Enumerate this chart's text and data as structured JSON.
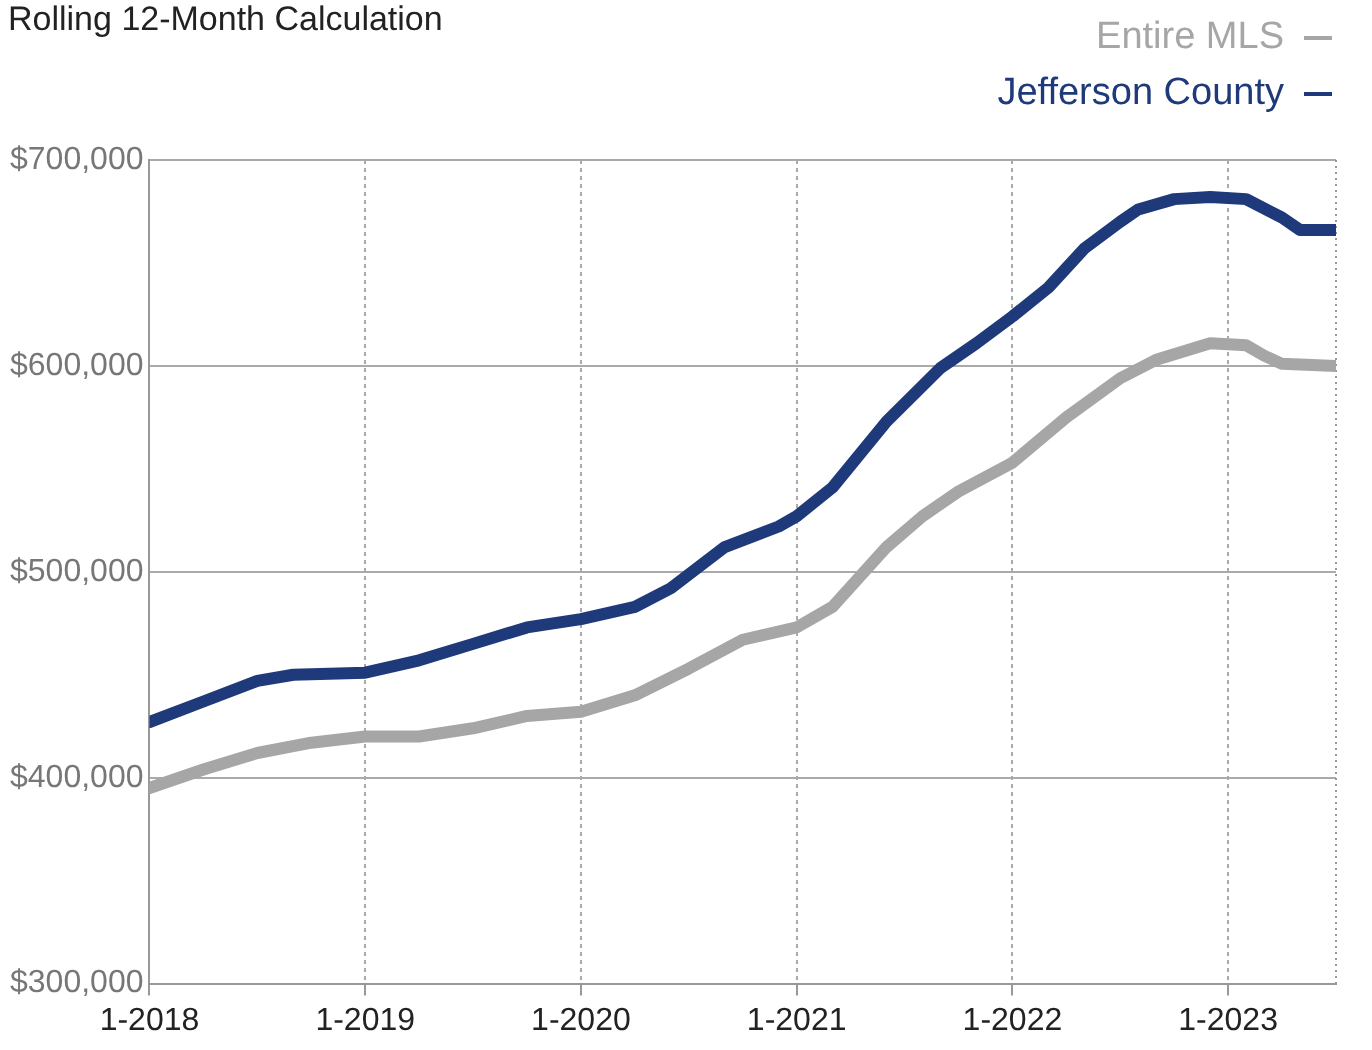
{
  "chart_data": {
    "type": "line",
    "title": "Rolling 12-Month Calculation",
    "xlim": [
      "2018-01",
      "2023-07"
    ],
    "xticks": [
      {
        "value": "2018-01",
        "label": "1-2018"
      },
      {
        "value": "2019-01",
        "label": "1-2019"
      },
      {
        "value": "2020-01",
        "label": "1-2020"
      },
      {
        "value": "2021-01",
        "label": "1-2021"
      },
      {
        "value": "2022-01",
        "label": "1-2022"
      },
      {
        "value": "2023-01",
        "label": "1-2023"
      }
    ],
    "ylim": [
      300000,
      700000
    ],
    "yticks": [
      {
        "value": 300000,
        "label": "$300,000"
      },
      {
        "value": 400000,
        "label": "$400,000"
      },
      {
        "value": 500000,
        "label": "$500,000"
      },
      {
        "value": 600000,
        "label": "$600,000"
      },
      {
        "value": 700000,
        "label": "$700,000"
      }
    ],
    "grid": true,
    "legend": "top right",
    "marker": "none",
    "line_style": "solid",
    "series": [
      {
        "name": "Entire MLS",
        "color": "#a6a6a6",
        "x": [
          "2018-01",
          "2018-04",
          "2018-07",
          "2018-10",
          "2019-01",
          "2019-04",
          "2019-07",
          "2019-10",
          "2020-01",
          "2020-04",
          "2020-07",
          "2020-10",
          "2021-01",
          "2021-03",
          "2021-06",
          "2021-08",
          "2021-10",
          "2022-01",
          "2022-04",
          "2022-07",
          "2022-09",
          "2022-12",
          "2023-02",
          "2023-03",
          "2023-04",
          "2023-07"
        ],
        "values": [
          395000,
          404000,
          412000,
          417000,
          420000,
          420000,
          424000,
          430000,
          432000,
          440000,
          453000,
          467000,
          473000,
          483000,
          512000,
          527000,
          539000,
          553000,
          575000,
          594000,
          603000,
          611000,
          610000,
          605000,
          601000,
          600000
        ]
      },
      {
        "name": "Jefferson County",
        "color": "#1f3a7a",
        "x": [
          "2018-01",
          "2018-04",
          "2018-07",
          "2018-09",
          "2019-01",
          "2019-04",
          "2019-07",
          "2019-10",
          "2020-01",
          "2020-04",
          "2020-06",
          "2020-09",
          "2020-12",
          "2021-01",
          "2021-03",
          "2021-06",
          "2021-09",
          "2021-11",
          "2022-01",
          "2022-03",
          "2022-05",
          "2022-07",
          "2022-08",
          "2022-10",
          "2022-12",
          "2023-02",
          "2023-04",
          "2023-05",
          "2023-07"
        ],
        "values": [
          427000,
          437000,
          447000,
          450000,
          451000,
          457000,
          465000,
          473000,
          477000,
          483000,
          492000,
          512000,
          522000,
          527000,
          541000,
          573000,
          599000,
          611000,
          624000,
          638000,
          657000,
          670000,
          676000,
          681000,
          682000,
          681000,
          672000,
          666000,
          666000
        ]
      }
    ]
  }
}
